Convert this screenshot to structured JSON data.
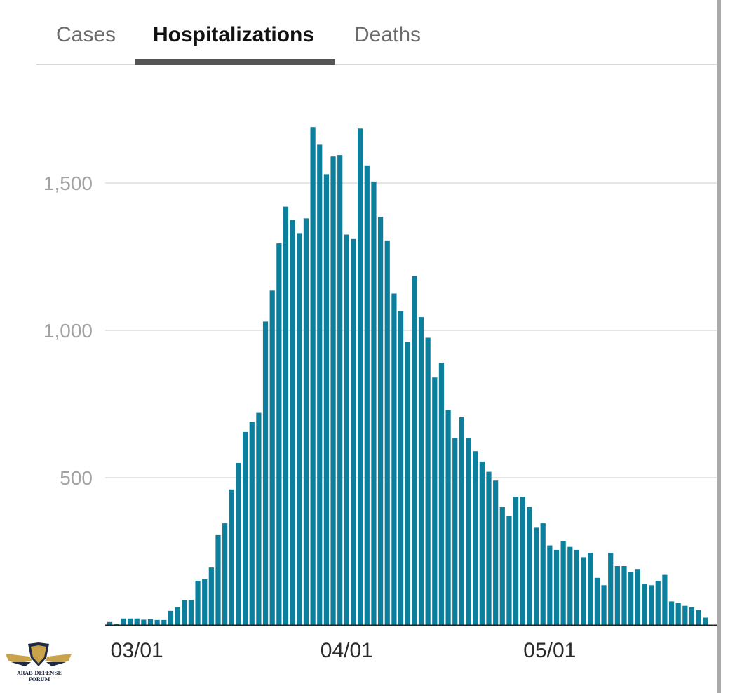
{
  "tabs": [
    {
      "label": "Cases",
      "active": false
    },
    {
      "label": "Hospitalizations",
      "active": true
    },
    {
      "label": "Deaths",
      "active": false
    }
  ],
  "colors": {
    "bar": "#0c7f9c",
    "grid": "#e6e6e6",
    "axis": "#222222",
    "tab_indicator": "#555555"
  },
  "logo": {
    "caption": "ARAB DEFENSE FORUM",
    "icon": "eagle-shield-icon"
  },
  "chart_data": {
    "type": "bar",
    "title": "",
    "xlabel": "",
    "ylabel": "",
    "x_start": "02/26",
    "x_ticks": [
      {
        "label": "03/01",
        "date": "03/01"
      },
      {
        "label": "04/01",
        "date": "04/01"
      },
      {
        "label": "05/01",
        "date": "05/01"
      }
    ],
    "yticks": [
      {
        "label": "500",
        "value": 500
      },
      {
        "label": "1,000",
        "value": 1000
      },
      {
        "label": "1,500",
        "value": 1500
      }
    ],
    "ylim": [
      0,
      1750
    ],
    "grid": true,
    "values": [
      10,
      3,
      22,
      22,
      22,
      18,
      20,
      17,
      17,
      48,
      60,
      85,
      85,
      150,
      155,
      195,
      305,
      345,
      460,
      550,
      655,
      690,
      720,
      1030,
      1135,
      1295,
      1420,
      1375,
      1330,
      1380,
      1690,
      1630,
      1530,
      1590,
      1595,
      1325,
      1310,
      1685,
      1560,
      1505,
      1385,
      1305,
      1125,
      1065,
      960,
      1185,
      1045,
      975,
      840,
      890,
      730,
      635,
      705,
      635,
      590,
      555,
      520,
      490,
      400,
      370,
      435,
      435,
      400,
      330,
      345,
      270,
      255,
      285,
      265,
      255,
      230,
      245,
      160,
      135,
      245,
      200,
      200,
      180,
      190,
      140,
      135,
      150,
      170,
      80,
      75,
      65,
      60,
      50,
      25
    ]
  }
}
